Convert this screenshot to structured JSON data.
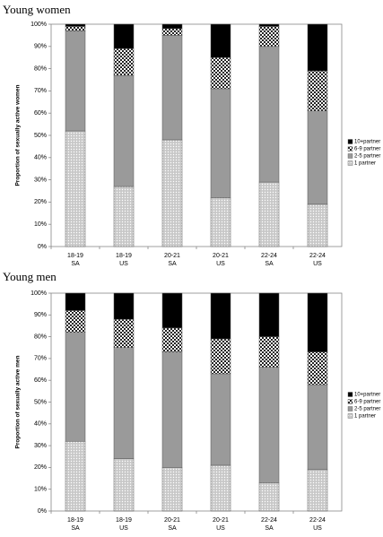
{
  "chart_data": [
    {
      "type": "stacked_bar",
      "title": "Young women",
      "ylabel": "Proportion of sexually active women",
      "categories": [
        [
          "18-19",
          "SA"
        ],
        [
          "18-19",
          "US"
        ],
        [
          "20-21",
          "SA"
        ],
        [
          "20-21",
          "US"
        ],
        [
          "22-24",
          "SA"
        ],
        [
          "22-24",
          "US"
        ]
      ],
      "series": [
        {
          "name": "1 partner",
          "color": "#cfcfcf",
          "pattern": "dots",
          "values": [
            52,
            27,
            48,
            22,
            29,
            19
          ]
        },
        {
          "name": "2-5 partner",
          "color": "#9a9a9a",
          "pattern": "none",
          "values": [
            45,
            50,
            47,
            49,
            61,
            42
          ]
        },
        {
          "name": "6-9 partner",
          "color": "#666666",
          "pattern": "checker",
          "values": [
            2,
            12,
            3,
            14,
            9,
            18
          ]
        },
        {
          "name": "10+partner",
          "color": "#000000",
          "pattern": "none",
          "values": [
            1,
            11,
            2,
            15,
            1,
            21
          ]
        }
      ],
      "ylim": [
        0,
        100
      ],
      "yticks": [
        {
          "value": 0,
          "label": "0%"
        },
        {
          "value": 10,
          "label": "10%"
        },
        {
          "value": 20,
          "label": "20%"
        },
        {
          "value": 30,
          "label": "30%"
        },
        {
          "value": 40,
          "label": "40%"
        },
        {
          "value": 50,
          "label": "50%"
        },
        {
          "value": 60,
          "label": "60%"
        },
        {
          "value": 70,
          "label": "70%"
        },
        {
          "value": 80,
          "label": "80%"
        },
        {
          "value": 90,
          "label": "90%"
        },
        {
          "value": 100,
          "label": "100%"
        }
      ],
      "grid": false,
      "legend": "right"
    },
    {
      "type": "stacked_bar",
      "title": "Young men",
      "ylabel": "Proportion of sexually active men",
      "categories": [
        [
          "18-19",
          "SA"
        ],
        [
          "18-19",
          "US"
        ],
        [
          "20-21",
          "SA"
        ],
        [
          "20-21",
          "US"
        ],
        [
          "22-24",
          "SA"
        ],
        [
          "22-24",
          "US"
        ]
      ],
      "series": [
        {
          "name": "1 partner",
          "color": "#cfcfcf",
          "pattern": "dots",
          "values": [
            32,
            24,
            20,
            21,
            13,
            19
          ]
        },
        {
          "name": "2-5 partner",
          "color": "#9a9a9a",
          "pattern": "none",
          "values": [
            50,
            51,
            53,
            42,
            53,
            39
          ]
        },
        {
          "name": "6-9 partner",
          "color": "#666666",
          "pattern": "checker",
          "values": [
            10,
            13,
            11,
            16,
            14,
            15
          ]
        },
        {
          "name": "10+partner",
          "color": "#000000",
          "pattern": "none",
          "values": [
            8,
            12,
            16,
            21,
            20,
            27
          ]
        }
      ],
      "ylim": [
        0,
        100
      ],
      "yticks": [
        {
          "value": 0,
          "label": "0%"
        },
        {
          "value": 10,
          "label": "10%"
        },
        {
          "value": 20,
          "label": "20%"
        },
        {
          "value": 30,
          "label": "30%"
        },
        {
          "value": 40,
          "label": "40%"
        },
        {
          "value": 50,
          "label": "50%"
        },
        {
          "value": 60,
          "label": "60%"
        },
        {
          "value": 70,
          "label": "70%"
        },
        {
          "value": 80,
          "label": "80%"
        },
        {
          "value": 90,
          "label": "90%"
        },
        {
          "value": 100,
          "label": "100%"
        }
      ],
      "grid": false,
      "legend": "right"
    }
  ]
}
